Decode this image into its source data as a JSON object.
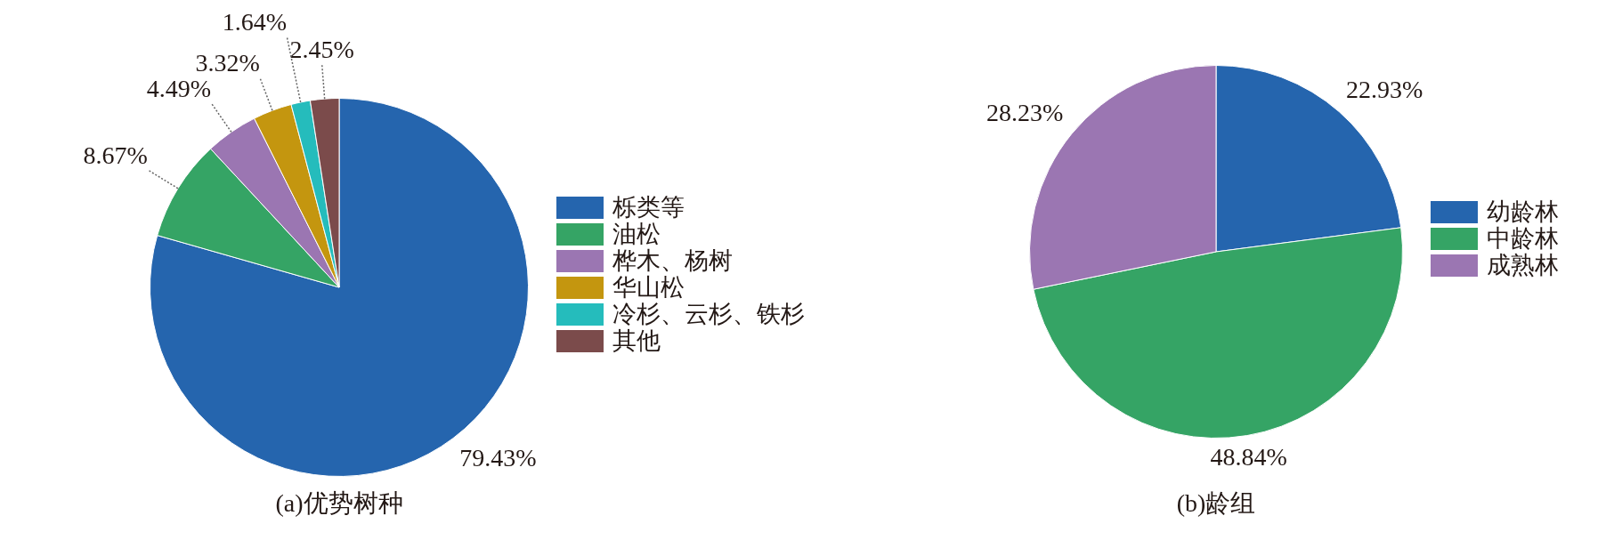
{
  "chart_data": [
    {
      "type": "pie",
      "title": "(a)优势树种",
      "categories": [
        "栎类等",
        "油松",
        "桦木、杨树",
        "华山松",
        "冷杉、云杉、铁杉",
        "其他"
      ],
      "values": [
        79.43,
        8.67,
        4.49,
        3.32,
        1.64,
        2.45
      ],
      "colors": [
        "#2565ae",
        "#35a465",
        "#9b76b2",
        "#c4960f",
        "#25bcbc",
        "#7b4b4b"
      ],
      "value_labels": [
        "79.43%",
        "8.67%",
        "4.49%",
        "3.32%",
        "1.64%",
        "2.45%"
      ],
      "legend": "right"
    },
    {
      "type": "pie",
      "title": "(b)龄组",
      "categories": [
        "幼龄林",
        "中龄林",
        "成熟林"
      ],
      "values": [
        22.93,
        48.84,
        28.23
      ],
      "colors": [
        "#2565ae",
        "#35a465",
        "#9b76b2"
      ],
      "value_labels": [
        "22.93%",
        "48.84%",
        "28.23%"
      ],
      "legend": "right"
    }
  ]
}
